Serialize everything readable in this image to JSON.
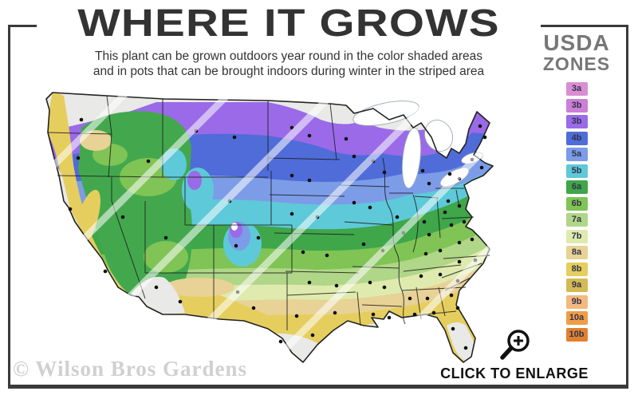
{
  "header": {
    "title": "WHERE IT GROWS",
    "subtitle_line1": "This plant can be grown outdoors year round in the color shaded areas",
    "subtitle_line2": "and in pots that can be brought indoors during winter in the striped area"
  },
  "legend": {
    "title_line1": "USDA",
    "title_line2": "ZONES",
    "zones": [
      {
        "label": "3a",
        "color": "#d98ed4"
      },
      {
        "label": "3b",
        "color": "#cb7fd6"
      },
      {
        "label": "3b",
        "color": "#9a6ae8"
      },
      {
        "label": "4b",
        "color": "#4f6cd8"
      },
      {
        "label": "5a",
        "color": "#7c9ce8"
      },
      {
        "label": "5b",
        "color": "#5ec9d8"
      },
      {
        "label": "6a",
        "color": "#3fa64a"
      },
      {
        "label": "6b",
        "color": "#7fc455"
      },
      {
        "label": "7a",
        "color": "#b0d687"
      },
      {
        "label": "7b",
        "color": "#dfeaae"
      },
      {
        "label": "8a",
        "color": "#e8d295"
      },
      {
        "label": "8b",
        "color": "#e5ce5d"
      },
      {
        "label": "9a",
        "color": "#d3ba55"
      },
      {
        "label": "9b",
        "color": "#f4b97e"
      },
      {
        "label": "10a",
        "color": "#f09c44"
      },
      {
        "label": "10b",
        "color": "#e0812f"
      }
    ]
  },
  "map": {
    "watermark": "© Wilson Bros Gardens"
  },
  "cta": {
    "label": "CLICK TO ENLARGE",
    "icon": "magnifier-plus-icon"
  },
  "colors": {
    "frame": "#3a3a3a",
    "title_text": "#333333",
    "legend_title_text": "#777777",
    "watermark_text": "#d0d0d0",
    "cta_text": "#111111"
  }
}
